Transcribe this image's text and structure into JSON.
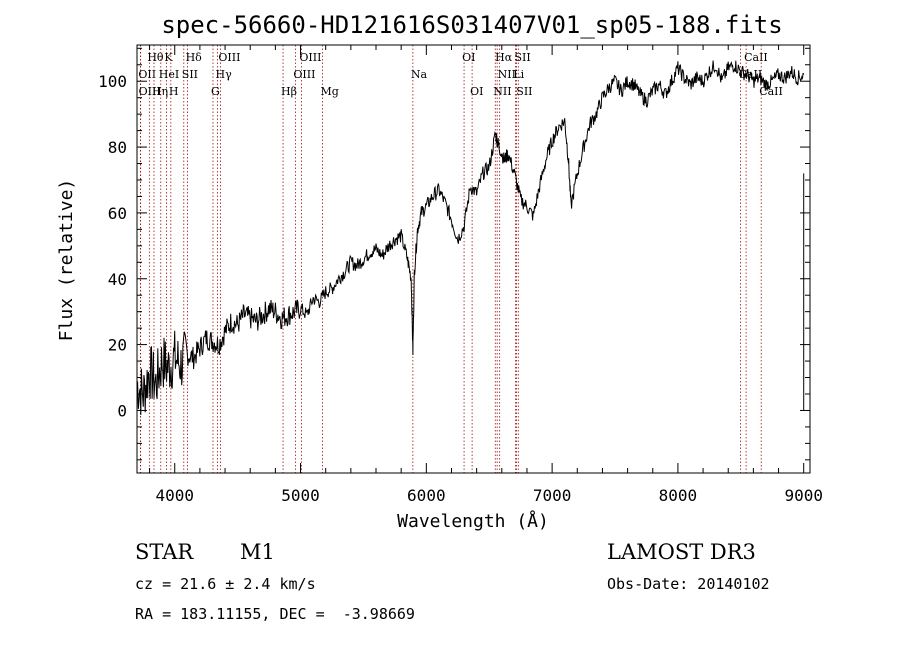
{
  "chart_data": {
    "type": "line",
    "title": "spec-56660-HD121616S031407V01_sp05-188.fits",
    "xlabel": "Wavelength (Å)",
    "ylabel": "Flux (relative)",
    "xlim": [
      3700,
      9050
    ],
    "ylim": [
      -19,
      111
    ],
    "xticks": [
      4000,
      5000,
      6000,
      7000,
      8000,
      9000
    ],
    "yticks": [
      0,
      20,
      40,
      60,
      80,
      100
    ],
    "series": [
      {
        "name": "flux",
        "x": [
          3700,
          3750,
          3800,
          3850,
          3900,
          3950,
          4000,
          4050,
          4100,
          4150,
          4200,
          4250,
          4300,
          4350,
          4400,
          4450,
          4500,
          4550,
          4600,
          4650,
          4700,
          4750,
          4800,
          4850,
          4900,
          4950,
          5000,
          5050,
          5100,
          5150,
          5200,
          5250,
          5300,
          5350,
          5400,
          5450,
          5500,
          5550,
          5600,
          5650,
          5700,
          5750,
          5800,
          5850,
          5880,
          5893,
          5905,
          5930,
          5960,
          6000,
          6050,
          6100,
          6150,
          6200,
          6250,
          6300,
          6350,
          6400,
          6450,
          6500,
          6550,
          6563,
          6580,
          6620,
          6650,
          6700,
          6750,
          6800,
          6850,
          6900,
          6950,
          7000,
          7050,
          7100,
          7130,
          7150,
          7200,
          7250,
          7300,
          7350,
          7400,
          7450,
          7500,
          7550,
          7600,
          7650,
          7700,
          7750,
          7800,
          7850,
          7900,
          7950,
          8000,
          8050,
          8100,
          8150,
          8200,
          8250,
          8300,
          8350,
          8400,
          8450,
          8500,
          8550,
          8600,
          8650,
          8700,
          8750,
          8800,
          8850,
          8900,
          8950,
          9000
        ],
        "y": [
          8,
          5,
          12,
          8,
          15,
          13,
          16,
          14,
          17,
          16,
          19,
          22,
          21,
          20,
          24,
          27,
          26,
          29,
          28,
          27,
          29,
          31,
          30,
          28,
          29,
          30,
          31,
          29,
          34,
          33,
          36,
          37,
          40,
          42,
          45,
          44,
          46,
          48,
          49,
          47,
          50,
          52,
          53,
          46,
          40,
          18,
          42,
          55,
          60,
          62,
          65,
          67,
          63,
          58,
          52,
          56,
          68,
          66,
          72,
          74,
          84,
          82,
          80,
          76,
          78,
          72,
          64,
          62,
          59,
          68,
          76,
          82,
          86,
          88,
          76,
          62,
          72,
          80,
          87,
          90,
          95,
          98,
          100,
          97,
          100,
          99,
          96,
          94,
          97,
          99,
          96,
          100,
          104,
          101,
          99,
          101,
          100,
          103,
          105,
          100,
          104,
          105,
          103,
          102,
          100,
          101,
          99,
          100,
          102,
          101,
          103,
          101,
          102
        ]
      }
    ],
    "lines": [
      {
        "name": "Hθ",
        "x": 3798,
        "row": 0
      },
      {
        "name": "K",
        "x": 3934,
        "row": 0
      },
      {
        "name": "Hδ",
        "x": 4102,
        "row": 0
      },
      {
        "name": "OIII",
        "x": 4363,
        "row": 0
      },
      {
        "name": "OIII",
        "x": 5007,
        "row": 0
      },
      {
        "name": "OI",
        "x": 6300,
        "row": 0
      },
      {
        "name": "Hα",
        "x": 6563,
        "row": 0
      },
      {
        "name": "SII",
        "x": 6717,
        "row": 0
      },
      {
        "name": "CaII",
        "x": 8542,
        "row": 0
      },
      {
        "name": "OII",
        "x": 3727,
        "row": 1
      },
      {
        "name": "HeI",
        "x": 3889,
        "row": 1
      },
      {
        "name": "SII",
        "x": 4072,
        "row": 1
      },
      {
        "name": "Hγ",
        "x": 4340,
        "row": 1
      },
      {
        "name": "OIII",
        "x": 4959,
        "row": 1
      },
      {
        "name": "Na",
        "x": 5893,
        "row": 1
      },
      {
        "name": "NII",
        "x": 6583,
        "row": 1
      },
      {
        "name": "Li",
        "x": 6708,
        "row": 1
      },
      {
        "name": "CaII",
        "x": 8498,
        "row": 1
      },
      {
        "name": "OIII",
        "x": 3729,
        "row": 2
      },
      {
        "name": "Hη",
        "x": 3835,
        "row": 2
      },
      {
        "name": "H",
        "x": 3969,
        "row": 2
      },
      {
        "name": "G",
        "x": 4304,
        "row": 2
      },
      {
        "name": "Hβ",
        "x": 4861,
        "row": 2
      },
      {
        "name": "Mg",
        "x": 5175,
        "row": 2
      },
      {
        "name": "OI",
        "x": 6364,
        "row": 2
      },
      {
        "name": "NII",
        "x": 6548,
        "row": 2
      },
      {
        "name": "SII",
        "x": 6731,
        "row": 2
      },
      {
        "name": "CaII",
        "x": 8662,
        "row": 2
      }
    ]
  },
  "info": {
    "class": "STAR",
    "subclass": "M1",
    "survey": "LAMOST DR3",
    "cz": "cz = 21.6 ± 2.4 km/s",
    "obs_date": "Obs-Date: 20140102",
    "coords": "RA = 183.11155, DEC =  -3.98669"
  },
  "colors": {
    "line_marker": "#a01010",
    "spectrum": "#000000"
  }
}
